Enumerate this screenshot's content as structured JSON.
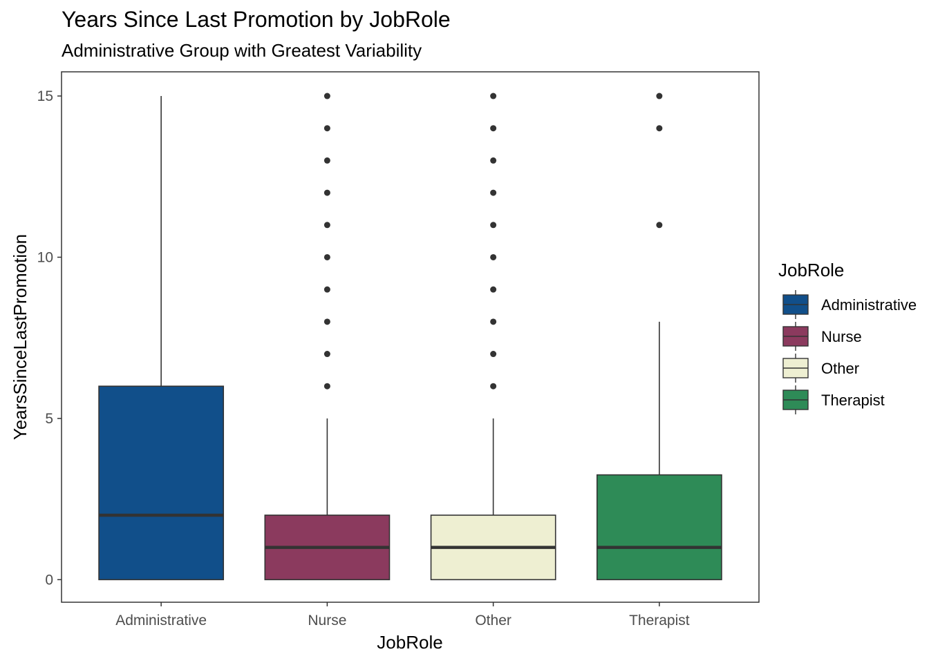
{
  "chart_data": {
    "type": "boxplot",
    "title": "Years Since Last Promotion by JobRole",
    "subtitle": "Administrative Group with Greatest Variability",
    "xlabel": "JobRole",
    "ylabel": "YearsSinceLastPromotion",
    "ylim": [
      -0.7,
      15.75
    ],
    "yticks": [
      0,
      5,
      10,
      15
    ],
    "grid": false,
    "legend": {
      "title": "JobRole",
      "position": "right"
    },
    "categories": [
      "Administrative",
      "Nurse",
      "Other",
      "Therapist"
    ],
    "boxes": [
      {
        "name": "Administrative",
        "color": "#114F8A",
        "whisker_low": 0,
        "q1": 0,
        "median": 2,
        "q3": 6,
        "whisker_high": 15,
        "outliers": []
      },
      {
        "name": "Nurse",
        "color": "#8B3A5E",
        "whisker_low": 0,
        "q1": 0,
        "median": 1,
        "q3": 2,
        "whisker_high": 5,
        "outliers": [
          6,
          7,
          8,
          9,
          10,
          11,
          12,
          13,
          14,
          15
        ]
      },
      {
        "name": "Other",
        "color": "#EEEFD2",
        "whisker_low": 0,
        "q1": 0,
        "median": 1,
        "q3": 2,
        "whisker_high": 5,
        "outliers": [
          6,
          7,
          8,
          9,
          10,
          11,
          12,
          13,
          14,
          15
        ]
      },
      {
        "name": "Therapist",
        "color": "#2E8B57",
        "whisker_low": 0,
        "q1": 0,
        "median": 1,
        "q3": 3.25,
        "whisker_high": 8,
        "outliers": [
          11,
          14,
          15
        ]
      }
    ]
  }
}
